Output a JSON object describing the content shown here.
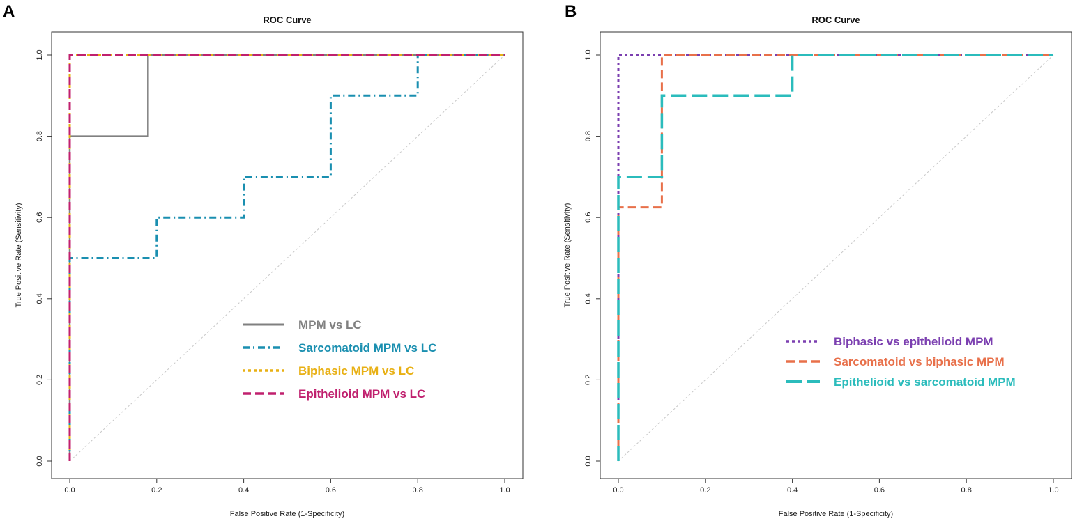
{
  "chart_data": [
    {
      "panel": "A",
      "type": "line",
      "title": "ROC Curve",
      "xlabel": "False Positive Rate (1-Specificity)",
      "ylabel": "True Positive Rate (Sensitivity)",
      "xlim": [
        0,
        1
      ],
      "ylim": [
        0,
        1
      ],
      "xticks": [
        "0.0",
        "0.2",
        "0.4",
        "0.6",
        "0.8",
        "1.0"
      ],
      "yticks": [
        "0.0",
        "0.2",
        "0.4",
        "0.6",
        "0.8",
        "1.0"
      ],
      "diagonal": true,
      "legend_position": "center-right",
      "series": [
        {
          "name": "MPM vs LC",
          "color": "#808080",
          "style": "solid",
          "x": [
            0,
            0,
            0.18,
            0.18,
            1
          ],
          "y": [
            0,
            0.8,
            0.8,
            1,
            1
          ]
        },
        {
          "name": "Sarcomatoid MPM vs LC",
          "color": "#1a8fb0",
          "style": "dashdot",
          "x": [
            0,
            0,
            0.2,
            0.2,
            0.4,
            0.4,
            0.6,
            0.6,
            0.8,
            0.8,
            1
          ],
          "y": [
            0,
            0.5,
            0.5,
            0.6,
            0.6,
            0.7,
            0.7,
            0.9,
            0.9,
            1,
            1
          ]
        },
        {
          "name": "Biphasic MPM vs LC",
          "color": "#e8b014",
          "style": "dotted",
          "x": [
            0,
            0,
            1
          ],
          "y": [
            0,
            1,
            1
          ]
        },
        {
          "name": "Epithelioid MPM vs LC",
          "color": "#c0206e",
          "style": "dashed",
          "x": [
            0,
            0,
            1
          ],
          "y": [
            0,
            1,
            1
          ]
        }
      ]
    },
    {
      "panel": "B",
      "type": "line",
      "title": "ROC Curve",
      "xlabel": "False Positive Rate (1-Specificity)",
      "ylabel": "True Positive Rate (Sensitivity)",
      "xlim": [
        0,
        1
      ],
      "ylim": [
        0,
        1
      ],
      "xticks": [
        "0.0",
        "0.2",
        "0.4",
        "0.6",
        "0.8",
        "1.0"
      ],
      "yticks": [
        "0.0",
        "0.2",
        "0.4",
        "0.6",
        "0.8",
        "1.0"
      ],
      "diagonal": true,
      "legend_position": "center-right",
      "series": [
        {
          "name": "Biphasic vs epithelioid MPM",
          "color": "#7b3fb0",
          "style": "dotted",
          "x": [
            0,
            0,
            1
          ],
          "y": [
            0,
            1,
            1
          ]
        },
        {
          "name": "Sarcomatoid vs biphasic MPM",
          "color": "#e8704a",
          "style": "dashed",
          "x": [
            0,
            0,
            0.1,
            0.1,
            1
          ],
          "y": [
            0,
            0.625,
            0.625,
            1,
            1
          ]
        },
        {
          "name": "Epithelioid vs sarcomatoid MPM",
          "color": "#2bbcbc",
          "style": "longdash",
          "x": [
            0,
            0,
            0.1,
            0.1,
            0.4,
            0.4,
            1
          ],
          "y": [
            0,
            0.7,
            0.7,
            0.9,
            0.9,
            1,
            1
          ]
        }
      ]
    }
  ]
}
